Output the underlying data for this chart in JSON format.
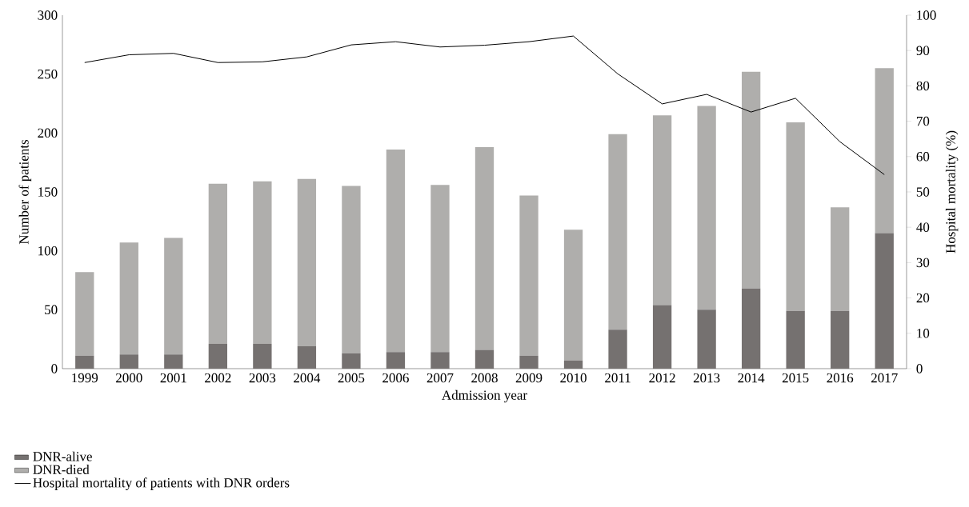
{
  "chart_data": {
    "type": "bar",
    "stacked": true,
    "categories": [
      "1999",
      "2000",
      "2001",
      "2002",
      "2003",
      "2004",
      "2005",
      "2006",
      "2007",
      "2008",
      "2009",
      "2010",
      "2011",
      "2012",
      "2013",
      "2014",
      "2015",
      "2016",
      "2017"
    ],
    "series": [
      {
        "name": "DNR-alive",
        "color": "#757170",
        "values": [
          11,
          12,
          12,
          21,
          21,
          19,
          13,
          14,
          14,
          16,
          11,
          7,
          33,
          54,
          50,
          68,
          49,
          49,
          115
        ]
      },
      {
        "name": "DNR-died",
        "color": "#afaeac",
        "values": [
          71,
          95,
          99,
          136,
          138,
          142,
          142,
          172,
          142,
          172,
          136,
          111,
          166,
          161,
          173,
          184,
          160,
          88,
          140
        ]
      },
      {
        "name": "Hospital mortality of patients with DNR orders",
        "type": "line",
        "axis": "y2",
        "color": "#000000",
        "values": [
          86.6,
          88.8,
          89.2,
          86.6,
          86.8,
          88.2,
          91.6,
          92.5,
          91.0,
          91.5,
          92.5,
          94.1,
          83.4,
          74.9,
          77.6,
          72.6,
          76.5,
          64.2,
          54.9
        ]
      }
    ],
    "xlabel": "Admission year",
    "ylabel": "Number of patients",
    "y2label": "Hospital mortality (%)",
    "ylim": [
      0,
      300
    ],
    "yticks": [
      0,
      50,
      100,
      150,
      200,
      250,
      300
    ],
    "y2lim": [
      0,
      100
    ],
    "y2ticks": [
      0,
      10,
      20,
      30,
      40,
      50,
      60,
      70,
      80,
      90,
      100
    ],
    "legend": "bottom"
  }
}
